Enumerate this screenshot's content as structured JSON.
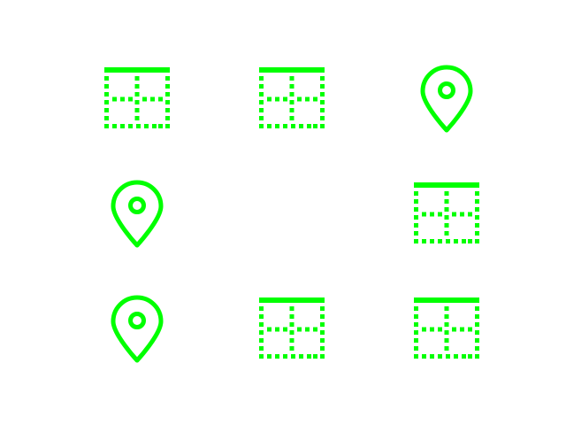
{
  "icon_color": "#00ff00",
  "grid": {
    "rows": 3,
    "cols": 3,
    "cells": [
      {
        "row": 0,
        "col": 0,
        "icon": "border-inner-icon"
      },
      {
        "row": 0,
        "col": 1,
        "icon": "border-inner-icon"
      },
      {
        "row": 0,
        "col": 2,
        "icon": "location-pin-icon"
      },
      {
        "row": 1,
        "col": 0,
        "icon": "location-pin-icon"
      },
      {
        "row": 1,
        "col": 1,
        "icon": ""
      },
      {
        "row": 1,
        "col": 2,
        "icon": "border-inner-icon"
      },
      {
        "row": 2,
        "col": 0,
        "icon": "location-pin-icon"
      },
      {
        "row": 2,
        "col": 1,
        "icon": "border-inner-icon"
      },
      {
        "row": 2,
        "col": 2,
        "icon": "border-inner-icon"
      }
    ]
  }
}
